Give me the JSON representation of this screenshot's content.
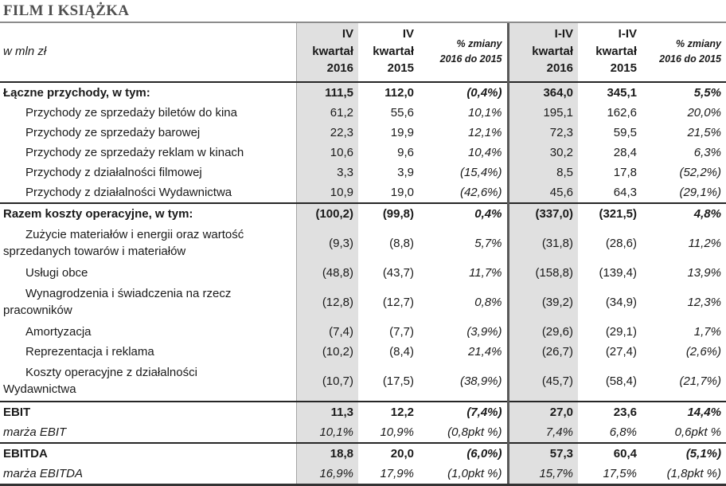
{
  "title": "FILM I KSIĄŻKA",
  "table": {
    "unit_label": "w mln zł",
    "columns": [
      {
        "label": "IV\nkwartał\n2016",
        "highlight": true
      },
      {
        "label": "IV\nkwartał\n2015",
        "highlight": false
      },
      {
        "label": "% zmiany\n2016 do 2015",
        "highlight": false
      },
      {
        "label": "I-IV\nkwartał\n2016",
        "highlight": true
      },
      {
        "label": "I-IV\nkwartał\n2015",
        "highlight": false
      },
      {
        "label": "% zmiany\n2016 do 2015",
        "highlight": false
      }
    ],
    "rows": [
      {
        "label": "Łączne przychody, w tym:",
        "style": "total",
        "section_start": false,
        "values": [
          "111,5",
          "112,0",
          "(0,4%)",
          "364,0",
          "345,1",
          "5,5%"
        ]
      },
      {
        "label": "Przychody ze sprzedaży biletów do kina",
        "style": "sub",
        "section_start": false,
        "values": [
          "61,2",
          "55,6",
          "10,1%",
          "195,1",
          "162,6",
          "20,0%"
        ]
      },
      {
        "label": "Przychody ze sprzedaży barowej",
        "style": "sub",
        "section_start": false,
        "values": [
          "22,3",
          "19,9",
          "12,1%",
          "72,3",
          "59,5",
          "21,5%"
        ]
      },
      {
        "label": "Przychody ze sprzedaży reklam w kinach",
        "style": "sub",
        "section_start": false,
        "values": [
          "10,6",
          "9,6",
          "10,4%",
          "30,2",
          "28,4",
          "6,3%"
        ]
      },
      {
        "label": "Przychody z działalności filmowej",
        "style": "sub",
        "section_start": false,
        "values": [
          "3,3",
          "3,9",
          "(15,4%)",
          "8,5",
          "17,8",
          "(52,2%)"
        ]
      },
      {
        "label": "Przychody z działalności Wydawnictwa",
        "style": "sub",
        "section_start": false,
        "values": [
          "10,9",
          "19,0",
          "(42,6%)",
          "45,6",
          "64,3",
          "(29,1%)"
        ]
      },
      {
        "label": "Razem koszty operacyjne, w tym:",
        "style": "total",
        "section_start": true,
        "values": [
          "(100,2)",
          "(99,8)",
          "0,4%",
          "(337,0)",
          "(321,5)",
          "4,8%"
        ]
      },
      {
        "label": "Zużycie materiałów i energii oraz wartość\nsprzedanych towarów i materiałów",
        "style": "sub",
        "section_start": false,
        "values": [
          "(9,3)",
          "(8,8)",
          "5,7%",
          "(31,8)",
          "(28,6)",
          "11,2%"
        ]
      },
      {
        "label": "Usługi obce",
        "style": "sub",
        "section_start": false,
        "values": [
          "(48,8)",
          "(43,7)",
          "11,7%",
          "(158,8)",
          "(139,4)",
          "13,9%"
        ]
      },
      {
        "label": "Wynagrodzenia i świadczenia na rzecz\npracowników",
        "style": "sub",
        "section_start": false,
        "values": [
          "(12,8)",
          "(12,7)",
          "0,8%",
          "(39,2)",
          "(34,9)",
          "12,3%"
        ]
      },
      {
        "label": "Amortyzacja",
        "style": "sub",
        "section_start": false,
        "values": [
          "(7,4)",
          "(7,7)",
          "(3,9%)",
          "(29,6)",
          "(29,1)",
          "1,7%"
        ]
      },
      {
        "label": "Reprezentacja i reklama",
        "style": "sub",
        "section_start": false,
        "values": [
          "(10,2)",
          "(8,4)",
          "21,4%",
          "(26,7)",
          "(27,4)",
          "(2,6%)"
        ]
      },
      {
        "label": "Koszty operacyjne z działalności\nWydawnictwa",
        "style": "sub",
        "section_start": false,
        "values": [
          "(10,7)",
          "(17,5)",
          "(38,9%)",
          "(45,7)",
          "(58,4)",
          "(21,7%)"
        ]
      },
      {
        "label": "EBIT",
        "style": "total",
        "section_start": true,
        "values": [
          "11,3",
          "12,2",
          "(7,4%)",
          "27,0",
          "23,6",
          "14,4%"
        ]
      },
      {
        "label": "marża EBIT",
        "style": "margin",
        "section_start": false,
        "values": [
          "10,1%",
          "10,9%",
          "(0,8pkt %)",
          "7,4%",
          "6,8%",
          "0,6pkt %"
        ]
      },
      {
        "label": "EBITDA",
        "style": "total",
        "section_start": true,
        "values": [
          "18,8",
          "20,0",
          "(6,0%)",
          "57,3",
          "60,4",
          "(5,1%)"
        ]
      },
      {
        "label": "marża EBITDA",
        "style": "margin",
        "section_start": false,
        "values": [
          "16,9%",
          "17,9%",
          "(1,0pkt %)",
          "15,7%",
          "17,5%",
          "(1,8pkt %)"
        ]
      }
    ]
  },
  "colors": {
    "highlight_column_bg": "#e0e0e0",
    "section_border": "#262626",
    "thin_divider": "#a6a6a6",
    "thick_divider": "#595959",
    "title_text": "#4f4f4f",
    "title_underline": "#8c8c8c",
    "body_text": "#1a1a1a"
  }
}
